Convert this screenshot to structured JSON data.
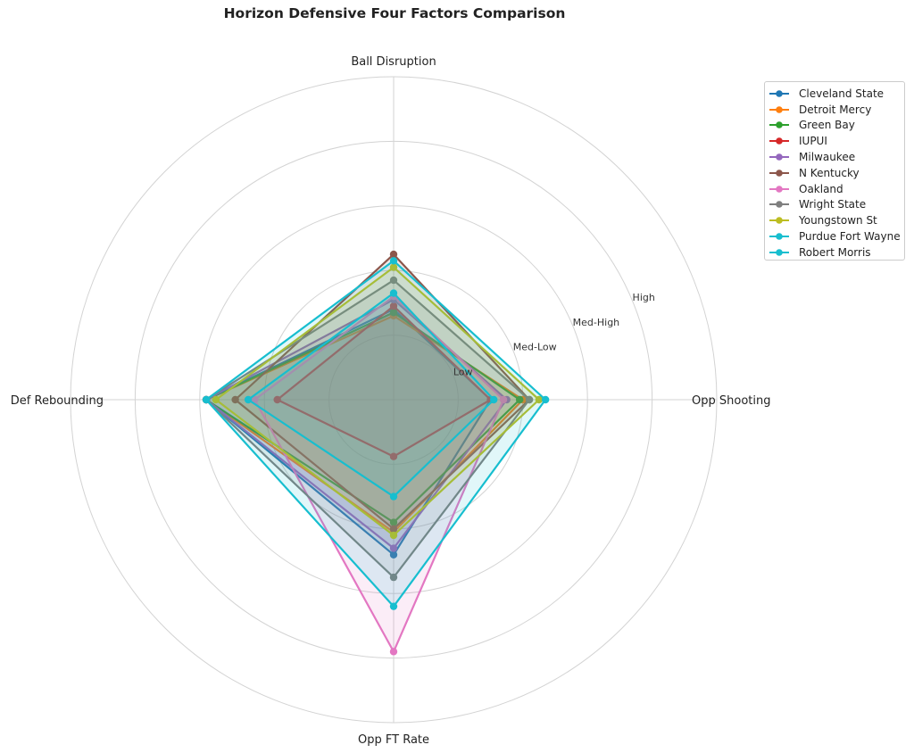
{
  "chart_data": {
    "type": "radar",
    "title": "Horizon Defensive Four Factors Comparison",
    "axes": [
      "Ball Disruption",
      "Opp Shooting",
      "Opp FT Rate",
      "Def Rebounding"
    ],
    "rings": [
      "Low",
      "Med-Low",
      "Med-High",
      "High"
    ],
    "rmax": 5,
    "grid": true,
    "legend_position": "upper-right",
    "series": [
      {
        "name": "Cleveland State",
        "color": "#1f77b4",
        "values": [
          1.4,
          1.5,
          2.4,
          2.9
        ]
      },
      {
        "name": "Detroit Mercy",
        "color": "#ff7f0e",
        "values": [
          1.3,
          2.0,
          2.05,
          2.9
        ]
      },
      {
        "name": "Green Bay",
        "color": "#2ca02c",
        "values": [
          1.35,
          1.95,
          1.9,
          2.9
        ]
      },
      {
        "name": "IUPUI",
        "color": "#d62728",
        "values": [
          1.45,
          1.5,
          0.88,
          1.8
        ]
      },
      {
        "name": "Milwaukee",
        "color": "#9467bd",
        "values": [
          1.55,
          1.75,
          2.3,
          2.9
        ]
      },
      {
        "name": "N Kentucky",
        "color": "#8c564b",
        "values": [
          2.25,
          2.1,
          2.0,
          2.45
        ]
      },
      {
        "name": "Oakland",
        "color": "#e377c2",
        "values": [
          1.6,
          1.7,
          3.9,
          2.15
        ]
      },
      {
        "name": "Wright State",
        "color": "#7f7f7f",
        "values": [
          1.85,
          2.1,
          2.75,
          2.9
        ]
      },
      {
        "name": "Youngstown St",
        "color": "#bcbd22",
        "values": [
          2.05,
          2.25,
          2.1,
          2.75
        ]
      },
      {
        "name": "Purdue Fort Wayne",
        "color": "#17becf",
        "values": [
          2.15,
          2.35,
          3.2,
          2.9
        ]
      },
      {
        "name": "Robert Morris",
        "color": "#17becf",
        "values": [
          1.65,
          1.55,
          1.5,
          2.25
        ]
      }
    ]
  }
}
